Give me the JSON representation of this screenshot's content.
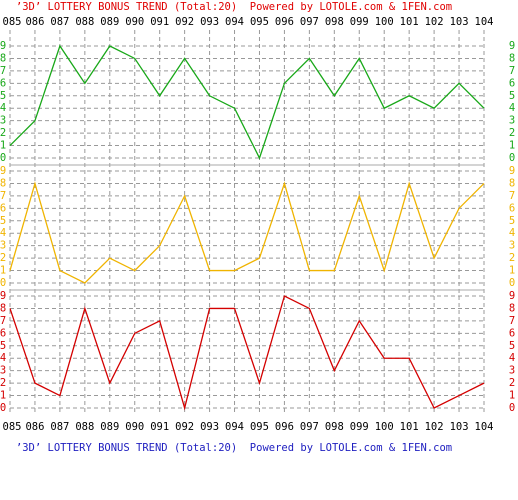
{
  "title": "’3D’ LOTTERY BONUS TREND (Total:20)  Powered by LOTOLE.com & 1FEN.com",
  "title_colors": {
    "top": "#e00000",
    "bottom": "#2020c0"
  },
  "categories": [
    "085",
    "086",
    "087",
    "088",
    "089",
    "090",
    "091",
    "092",
    "093",
    "094",
    "095",
    "096",
    "097",
    "098",
    "099",
    "100",
    "101",
    "102",
    "103",
    "104"
  ],
  "chart_data": [
    {
      "type": "line",
      "color": "#19a819",
      "ylim": [
        0,
        9
      ],
      "yticks": [
        0,
        1,
        2,
        3,
        4,
        5,
        6,
        7,
        8,
        9
      ],
      "grid": true,
      "values": [
        1,
        3,
        9,
        6,
        9,
        8,
        5,
        8,
        5,
        4,
        0,
        6,
        8,
        5,
        8,
        4,
        5,
        4,
        6,
        4
      ]
    },
    {
      "type": "line",
      "color": "#f0b400",
      "ylim": [
        0,
        9
      ],
      "yticks": [
        0,
        1,
        2,
        3,
        4,
        5,
        6,
        7,
        8,
        9
      ],
      "grid": true,
      "values": [
        1,
        8,
        1,
        0,
        2,
        1,
        3,
        7,
        1,
        1,
        2,
        8,
        1,
        1,
        7,
        1,
        8,
        2,
        6,
        8
      ]
    },
    {
      "type": "line",
      "color": "#d40000",
      "ylim": [
        0,
        9
      ],
      "yticks": [
        0,
        1,
        2,
        3,
        4,
        5,
        6,
        7,
        8,
        9
      ],
      "grid": true,
      "values": [
        8,
        2,
        1,
        8,
        2,
        6,
        7,
        0,
        8,
        8,
        2,
        9,
        8,
        3,
        7,
        4,
        4,
        0,
        1,
        2
      ]
    }
  ]
}
